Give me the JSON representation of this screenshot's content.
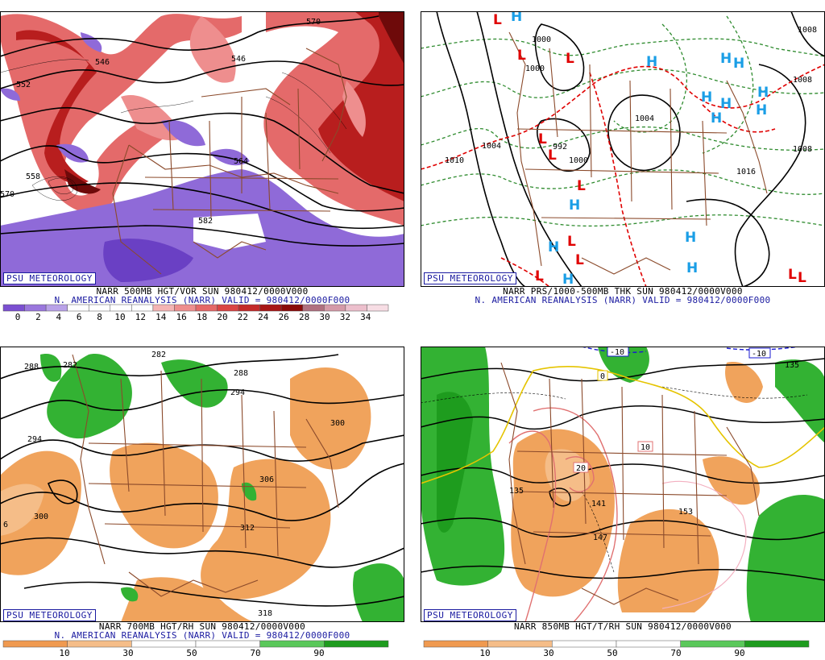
{
  "brand": "PSU METEOROLOGY",
  "panels": {
    "p1": {
      "title": "NARR 500MB HGT/VOR SUN 980412/0000V000",
      "subtitle": "N. AMERICAN REANALYSIS (NARR) VALID = 980412/0000F000",
      "contour_labels": [
        "546",
        "546",
        "552",
        "558",
        "564",
        "570",
        "570",
        "582"
      ],
      "scale_ticks": [
        "0",
        "2",
        "4",
        "6",
        "8",
        "10",
        "12",
        "14",
        "16",
        "18",
        "20",
        "22",
        "24",
        "26",
        "28",
        "30",
        "32",
        "34"
      ],
      "scale_colors": [
        "#7b4fd1",
        "#9a77dd",
        "#b9a2e8",
        "#ffffff",
        "#ffffff",
        "#ffffff",
        "#ffffff",
        "#f4b4b4",
        "#ee8e8e",
        "#e56868",
        "#da4444",
        "#c42a2a",
        "#a81616",
        "#8a0a0a",
        "#b07080",
        "#d59aa8",
        "#ecbfcc",
        "#f7dde4"
      ]
    },
    "p2": {
      "title": "NARR PRS/1000-500MB THK SUN 980412/0000V000",
      "subtitle": "N. AMERICAN REANALYSIS (NARR) VALID = 980412/0000F000",
      "contour_labels": [
        "1000",
        "1000",
        "1004",
        "1004",
        "1008",
        "1008",
        "1008",
        "1016",
        "1010",
        "992",
        "1000"
      ],
      "lows": [
        "L",
        "L",
        "L",
        "L",
        "L",
        "L",
        "L",
        "L",
        "L",
        "L",
        "L"
      ],
      "highs": [
        "H",
        "H",
        "H",
        "H",
        "H",
        "H",
        "H",
        "H",
        "H",
        "H",
        "H",
        "H",
        "H",
        "H"
      ],
      "colors": {
        "low": "#e00000",
        "high": "#1a9ee6"
      }
    },
    "p3": {
      "title": "NARR 700MB HGT/RH SUN 980412/0000V000",
      "subtitle": "N. AMERICAN REANALYSIS (NARR) VALID = 980412/0000F000",
      "contour_labels": [
        "282",
        "288",
        "282",
        "288",
        "294",
        "294",
        "300",
        "300",
        "306",
        "312",
        "318",
        "6"
      ],
      "scale_ticks": [
        "10",
        "30",
        "50",
        "70",
        "90"
      ],
      "scale_colors": [
        "#f09a50",
        "#f5bd88",
        "#ffffff",
        "#ffffff",
        "#5ac85a",
        "#1e9c1e"
      ]
    },
    "p4": {
      "title": "NARR 850MB HGT/T/RH SUN 980412/0000V000",
      "subtitle": "",
      "contour_labels": [
        "135",
        "141",
        "147",
        "153",
        "135"
      ],
      "isotherm_labels": [
        "0",
        "10",
        "20",
        "-10",
        "-10"
      ],
      "scale_ticks": [
        "10",
        "30",
        "50",
        "70",
        "90"
      ],
      "scale_colors": [
        "#f09a50",
        "#f5bd88",
        "#ffffff",
        "#ffffff",
        "#5ac85a",
        "#1e9c1e"
      ]
    }
  },
  "colors": {
    "borders": "#8b4a2b",
    "contours": "#000000",
    "brand": "#1a1aa0",
    "orange": "#f0a35c",
    "green": "#33b233",
    "purple": "#8f6ad8",
    "red": "#d63a3a"
  }
}
